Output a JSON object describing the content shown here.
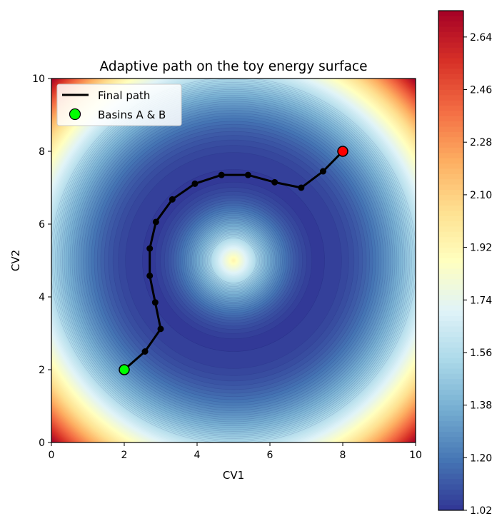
{
  "chart_data": {
    "type": "contour",
    "title": "Adaptive path on the toy energy surface",
    "xlabel": "CV1",
    "ylabel": "CV2",
    "xlim": [
      0,
      10
    ],
    "ylim": [
      0,
      10
    ],
    "xticks": [
      "0",
      "2",
      "4",
      "6",
      "8",
      "10"
    ],
    "yticks": [
      "0",
      "2",
      "4",
      "6",
      "8",
      "10"
    ],
    "grid": false,
    "legend_position": "top-left",
    "legend": [
      {
        "label": "Final path",
        "kind": "line",
        "color": "#000000"
      },
      {
        "label": "Basins A & B",
        "kind": "marker",
        "color": "#00ff00"
      }
    ],
    "surface": {
      "center": [
        5,
        5
      ],
      "ring_radius": 2.5,
      "colormap": "RdYlBu_r",
      "vmin": 1.02,
      "vmax": 2.73
    },
    "colorbar": {
      "ticks": [
        "1.02",
        "1.20",
        "1.38",
        "1.56",
        "1.74",
        "1.92",
        "2.10",
        "2.28",
        "2.46",
        "2.64"
      ],
      "values": [
        1.02,
        1.2,
        1.38,
        1.56,
        1.74,
        1.92,
        2.1,
        2.28,
        2.46,
        2.64
      ]
    },
    "path": {
      "name": "Final path",
      "x": [
        2.0,
        2.57,
        3.0,
        2.85,
        2.7,
        2.7,
        2.87,
        3.32,
        3.94,
        4.67,
        5.4,
        6.13,
        6.86,
        7.46,
        8.0
      ],
      "y": [
        2.0,
        2.5,
        3.12,
        3.85,
        4.58,
        5.33,
        6.06,
        6.68,
        7.11,
        7.35,
        7.35,
        7.15,
        7.0,
        7.45,
        8.0
      ]
    },
    "basins": {
      "name": "Basins A & B",
      "points": [
        {
          "x": 2,
          "y": 2,
          "color": "#00ff00"
        },
        {
          "x": 8,
          "y": 8,
          "color": "#ff0000"
        }
      ]
    }
  }
}
